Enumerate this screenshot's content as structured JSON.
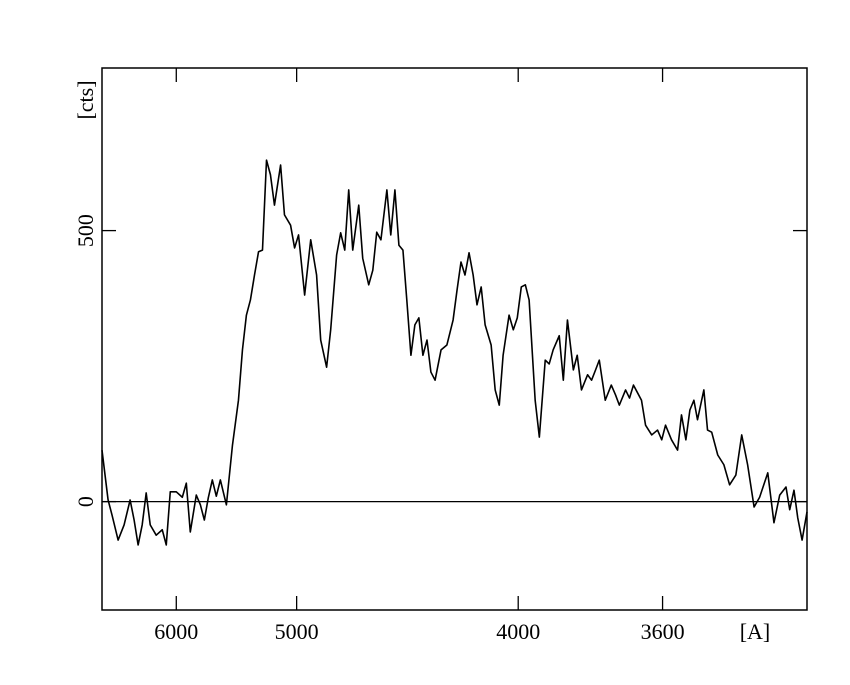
{
  "chart_data": {
    "type": "line",
    "x_label": "[A]",
    "y_label": "[cts]",
    "xscale": "inverse-square",
    "xlim": [
      7030,
      3300
    ],
    "ylim": [
      -200,
      800
    ],
    "xticks": [
      6000,
      5000,
      4000,
      3600
    ],
    "yticks": [
      0,
      500
    ],
    "reference_line": 0,
    "color": "#000000",
    "x": [
      7030,
      6925,
      6859,
      6762,
      6670,
      6581,
      6524,
      6468,
      6413,
      6360,
      6308,
      6233,
      6160,
      6113,
      6067,
      6000,
      5935,
      5893,
      5852,
      5792,
      5752,
      5714,
      5677,
      5640,
      5604,
      5568,
      5516,
      5465,
      5416,
      5384,
      5353,
      5322,
      5291,
      5261,
      5232,
      5203,
      5175,
      5147,
      5105,
      5079,
      5039,
      5013,
      4988,
      4950,
      4913,
      4878,
      4854,
      4820,
      4797,
      4764,
      4742,
      4720,
      4699,
      4678,
      4647,
      4627,
      4597,
      4577,
      4558,
      4538,
      4510,
      4492,
      4473,
      4455,
      4437,
      4420,
      4402,
      4385,
      4368,
      4351,
      4334,
      4318,
      4301,
      4277,
      4254,
      4230,
      4215,
      4200,
      4185,
      4170,
      4155,
      4141,
      4126,
      4112,
      4091,
      4077,
      4063,
      4050,
      4030,
      4016,
      4003,
      3990,
      3977,
      3965,
      3946,
      3933,
      3915,
      3903,
      3891,
      3873,
      3861,
      3849,
      3832,
      3821,
      3809,
      3792,
      3781,
      3770,
      3760,
      3744,
      3728,
      3717,
      3707,
      3691,
      3681,
      3671,
      3651,
      3641,
      3626,
      3612,
      3602,
      3593,
      3579,
      3565,
      3556,
      3546,
      3537,
      3528,
      3520,
      3506,
      3498,
      3489,
      3476,
      3463,
      3451,
      3438,
      3426,
      3414,
      3401,
      3390,
      3374,
      3362,
      3351,
      3339,
      3332,
      3324,
      3317,
      3309,
      3300
    ],
    "values": [
      95,
      3,
      -25,
      -71,
      -43,
      3,
      -34,
      -80,
      -43,
      16,
      -43,
      -62,
      -52,
      -80,
      18,
      18,
      8,
      34,
      -56,
      12,
      -6,
      -34,
      7,
      40,
      10,
      40,
      -6,
      104,
      187,
      280,
      344,
      372,
      418,
      461,
      464,
      630,
      603,
      547,
      621,
      529,
      510,
      468,
      492,
      381,
      483,
      418,
      298,
      248,
      317,
      455,
      496,
      464,
      575,
      464,
      547,
      449,
      400,
      427,
      497,
      483,
      575,
      492,
      575,
      473,
      464,
      372,
      270,
      326,
      339,
      270,
      298,
      239,
      224,
      280,
      289,
      335,
      390,
      442,
      418,
      459,
      418,
      363,
      396,
      326,
      289,
      206,
      178,
      270,
      344,
      317,
      339,
      396,
      400,
      372,
      187,
      119,
      261,
      254,
      280,
      306,
      224,
      335,
      243,
      270,
      206,
      234,
      224,
      243,
      261,
      187,
      215,
      197,
      178,
      206,
      191,
      215,
      187,
      141,
      123,
      132,
      114,
      141,
      114,
      95,
      160,
      114,
      169,
      187,
      151,
      206,
      132,
      128,
      86,
      68,
      31,
      49,
      123,
      68,
      -10,
      8,
      53,
      -39,
      12,
      27,
      -15,
      21,
      -30,
      -71,
      -19
    ]
  }
}
